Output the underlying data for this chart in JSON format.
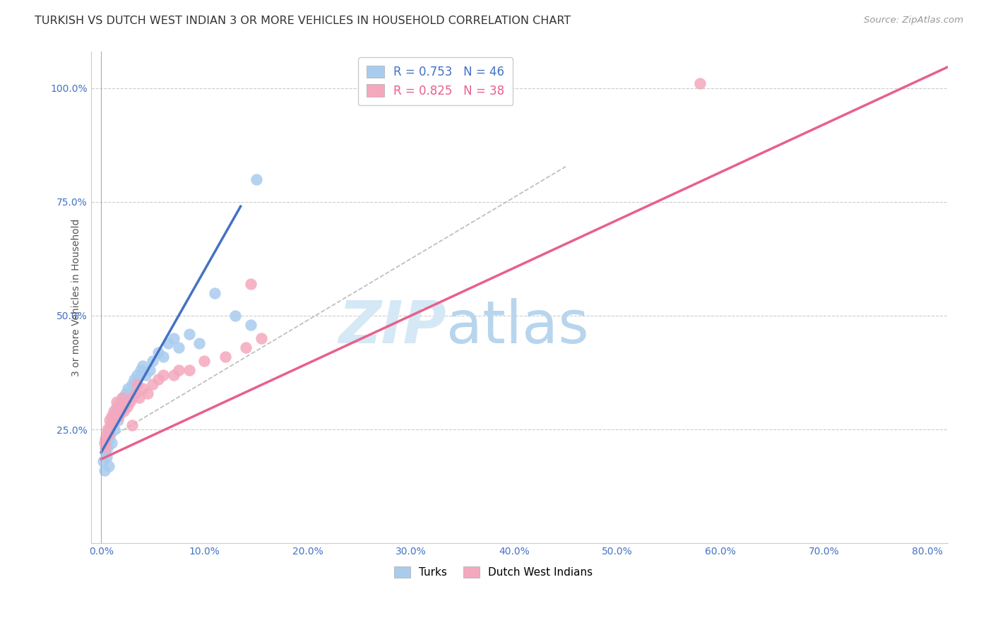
{
  "title": "TURKISH VS DUTCH WEST INDIAN 3 OR MORE VEHICLES IN HOUSEHOLD CORRELATION CHART",
  "source": "Source: ZipAtlas.com",
  "xlabel_vals": [
    0.0,
    10.0,
    20.0,
    30.0,
    40.0,
    50.0,
    60.0,
    70.0,
    80.0
  ],
  "ylabel_vals": [
    25.0,
    50.0,
    75.0,
    100.0
  ],
  "ylim": [
    0.0,
    108.0
  ],
  "xlim": [
    -1.0,
    82.0
  ],
  "ylabel": "3 or more Vehicles in Household",
  "turks_R": 0.753,
  "turks_N": 46,
  "dutch_R": 0.825,
  "dutch_N": 38,
  "blue_scatter": "#A8CCEE",
  "pink_scatter": "#F4A8BE",
  "blue_line": "#4472C4",
  "pink_line": "#E8608A",
  "gray_diag": "#BBBBBB",
  "title_color": "#333333",
  "source_color": "#999999",
  "axis_tick_color": "#4472C4",
  "watermark_color": "#D5E8F5",
  "turks_x": [
    0.2,
    0.3,
    0.4,
    0.5,
    0.5,
    0.6,
    0.7,
    0.7,
    0.8,
    0.9,
    1.0,
    1.0,
    1.1,
    1.2,
    1.3,
    1.4,
    1.5,
    1.6,
    1.7,
    1.8,
    1.9,
    2.0,
    2.1,
    2.2,
    2.4,
    2.6,
    2.8,
    3.0,
    3.2,
    3.5,
    3.8,
    4.0,
    4.3,
    4.7,
    5.0,
    5.5,
    6.0,
    6.5,
    7.0,
    7.5,
    8.5,
    9.5,
    11.0,
    13.0,
    14.5,
    15.0
  ],
  "turks_y": [
    18.0,
    16.0,
    20.0,
    19.0,
    22.0,
    21.0,
    17.0,
    23.0,
    25.0,
    24.0,
    26.0,
    22.0,
    27.0,
    28.0,
    25.0,
    29.0,
    30.0,
    27.0,
    28.0,
    31.0,
    29.0,
    30.0,
    32.0,
    31.0,
    33.0,
    34.0,
    33.0,
    35.0,
    36.0,
    37.0,
    38.0,
    39.0,
    37.0,
    38.0,
    40.0,
    42.0,
    41.0,
    44.0,
    45.0,
    43.0,
    46.0,
    44.0,
    55.0,
    50.0,
    48.0,
    80.0
  ],
  "dutch_x": [
    0.3,
    0.4,
    0.5,
    0.6,
    0.8,
    1.0,
    1.2,
    1.5,
    1.8,
    2.0,
    2.2,
    2.5,
    2.8,
    3.0,
    3.3,
    3.7,
    4.0,
    4.5,
    5.0,
    5.5,
    6.0,
    7.0,
    7.5,
    8.5,
    10.0,
    12.0,
    14.0,
    15.5,
    0.4,
    0.7,
    0.9,
    1.3,
    1.7,
    2.2,
    3.0,
    3.5,
    14.5,
    58.0
  ],
  "dutch_y": [
    22.0,
    23.0,
    24.0,
    25.0,
    27.0,
    28.0,
    29.0,
    31.0,
    30.0,
    32.0,
    29.0,
    30.0,
    31.0,
    32.0,
    33.0,
    32.0,
    34.0,
    33.0,
    35.0,
    36.0,
    37.0,
    37.0,
    38.0,
    38.0,
    40.0,
    41.0,
    43.0,
    45.0,
    21.0,
    24.0,
    26.0,
    27.0,
    28.0,
    30.0,
    26.0,
    35.0,
    57.0,
    101.0
  ],
  "watermark_zip": "ZIP",
  "watermark_atlas": "atlas",
  "title_fontsize": 11.5,
  "source_fontsize": 9.5,
  "tick_fontsize": 10,
  "ylabel_fontsize": 10,
  "legend_fontsize": 12
}
